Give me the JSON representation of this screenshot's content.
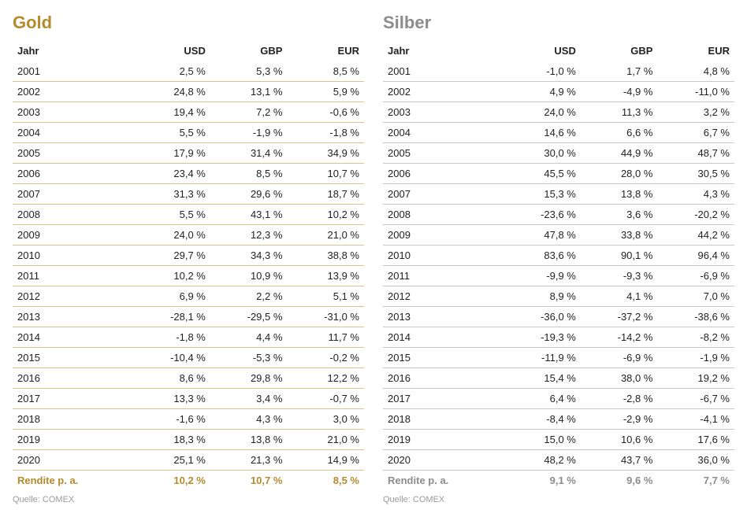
{
  "tables": [
    {
      "title": "Gold",
      "title_color": "#b58b2c",
      "row_border_color": "#d9c38a",
      "footer_color": "#b58b2c",
      "columns": [
        "Jahr",
        "USD",
        "GBP",
        "EUR"
      ],
      "rows": [
        [
          "2001",
          "2,5 %",
          "5,3 %",
          "8,5 %"
        ],
        [
          "2002",
          "24,8 %",
          "13,1 %",
          "5,9 %"
        ],
        [
          "2003",
          "19,4 %",
          "7,2 %",
          "-0,6 %"
        ],
        [
          "2004",
          "5,5 %",
          "-1,9 %",
          "-1,8 %"
        ],
        [
          "2005",
          "17,9 %",
          "31,4 %",
          "34,9 %"
        ],
        [
          "2006",
          "23,4 %",
          "8,5 %",
          "10,7 %"
        ],
        [
          "2007",
          "31,3 %",
          "29,6 %",
          "18,7 %"
        ],
        [
          "2008",
          "5,5 %",
          "43,1 %",
          "10,2 %"
        ],
        [
          "2009",
          "24,0 %",
          "12,3 %",
          "21,0 %"
        ],
        [
          "2010",
          "29,7 %",
          "34,3 %",
          "38,8 %"
        ],
        [
          "2011",
          "10,2 %",
          "10,9 %",
          "13,9 %"
        ],
        [
          "2012",
          "6,9 %",
          "2,2 %",
          "5,1 %"
        ],
        [
          "2013",
          "-28,1 %",
          "-29,5 %",
          "-31,0 %"
        ],
        [
          "2014",
          "-1,8 %",
          "4,4 %",
          "11,7 %"
        ],
        [
          "2015",
          "-10,4 %",
          "-5,3 %",
          "-0,2 %"
        ],
        [
          "2016",
          "8,6 %",
          "29,8 %",
          "12,2 %"
        ],
        [
          "2017",
          "13,3 %",
          "3,4 %",
          "-0,7 %"
        ],
        [
          "2018",
          "-1,6 %",
          "4,3 %",
          "3,0 %"
        ],
        [
          "2019",
          "18,3 %",
          "13,8 %",
          "21,0 %"
        ],
        [
          "2020",
          "25,1 %",
          "21,3 %",
          "14,9 %"
        ]
      ],
      "footer": [
        "Rendite p. a.",
        "10,2 %",
        "10,7 %",
        "8,5 %"
      ],
      "source": "Quelle: COMEX"
    },
    {
      "title": "Silber",
      "title_color": "#8c8c8c",
      "row_border_color": "#c8c8c8",
      "footer_color": "#8c8c8c",
      "columns": [
        "Jahr",
        "USD",
        "GBP",
        "EUR"
      ],
      "rows": [
        [
          "2001",
          "-1,0 %",
          "1,7 %",
          "4,8 %"
        ],
        [
          "2002",
          "4,9 %",
          "-4,9 %",
          "-11,0 %"
        ],
        [
          "2003",
          "24,0 %",
          "11,3 %",
          "3,2 %"
        ],
        [
          "2004",
          "14,6 %",
          "6,6 %",
          "6,7 %"
        ],
        [
          "2005",
          "30,0 %",
          "44,9 %",
          "48,7 %"
        ],
        [
          "2006",
          "45,5 %",
          "28,0 %",
          "30,5 %"
        ],
        [
          "2007",
          "15,3 %",
          "13,8 %",
          "4,3 %"
        ],
        [
          "2008",
          "-23,6 %",
          "3,6 %",
          "-20,2 %"
        ],
        [
          "2009",
          "47,8 %",
          "33,8 %",
          "44,2 %"
        ],
        [
          "2010",
          "83,6 %",
          "90,1 %",
          "96,4 %"
        ],
        [
          "2011",
          "-9,9 %",
          "-9,3 %",
          "-6,9 %"
        ],
        [
          "2012",
          "8,9 %",
          "4,1 %",
          "7,0 %"
        ],
        [
          "2013",
          "-36,0 %",
          "-37,2 %",
          "-38,6 %"
        ],
        [
          "2014",
          "-19,3 %",
          "-14,2 %",
          "-8,2 %"
        ],
        [
          "2015",
          "-11,9 %",
          "-6,9 %",
          "-1,9 %"
        ],
        [
          "2016",
          "15,4 %",
          "38,0 %",
          "19,2 %"
        ],
        [
          "2017",
          "6,4 %",
          "-2,8 %",
          "-6,7 %"
        ],
        [
          "2018",
          "-8,4 %",
          "-2,9 %",
          "-4,1 %"
        ],
        [
          "2019",
          "15,0 %",
          "10,6 %",
          "17,6 %"
        ],
        [
          "2020",
          "48,2 %",
          "43,7 %",
          "36,0 %"
        ]
      ],
      "footer": [
        "Rendite p. a.",
        "9,1 %",
        "9,6 %",
        "7,7 %"
      ],
      "source": "Quelle: COMEX"
    }
  ]
}
